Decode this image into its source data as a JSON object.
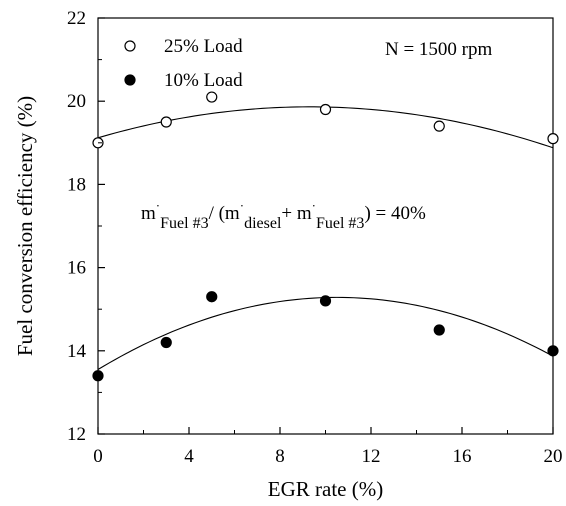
{
  "chart_data": {
    "type": "scatter",
    "xlabel": "EGR rate (%)",
    "ylabel": "Fuel conversion efficiency (%)",
    "xlim": [
      0,
      20
    ],
    "ylim": [
      12,
      22
    ],
    "xticks": [
      0,
      4,
      8,
      12,
      16,
      20
    ],
    "yticks": [
      12,
      14,
      16,
      18,
      20,
      22
    ],
    "grid": false,
    "legend_position": "top-left",
    "annotations": {
      "speed": "N = 1500 rpm",
      "ratio": {
        "m1": "m",
        "dot": "·",
        "sub1": "Fuel #3",
        "mid": "/ (m",
        "sub2": "diesel",
        "plus": "+ m",
        "sub3": "Fuel #3",
        "end": ") = 40%"
      }
    },
    "series": [
      {
        "name": "25% Load",
        "marker": "open-circle",
        "x": [
          0,
          3,
          5,
          10,
          15,
          20
        ],
        "y": [
          19.0,
          19.5,
          20.1,
          19.8,
          19.4,
          19.1
        ],
        "fit_quadratic": [
          19.12,
          0.16,
          -0.0086
        ]
      },
      {
        "name": "10% Load",
        "marker": "filled-circle",
        "x": [
          0,
          3,
          5,
          10,
          15,
          20
        ],
        "y": [
          13.4,
          14.2,
          15.3,
          15.2,
          14.5,
          14.0
        ],
        "fit_quadratic": [
          13.55,
          0.33,
          -0.0157
        ]
      }
    ],
    "colors": {
      "axis": "#000000",
      "marker": "#000000",
      "background": "#ffffff"
    }
  }
}
